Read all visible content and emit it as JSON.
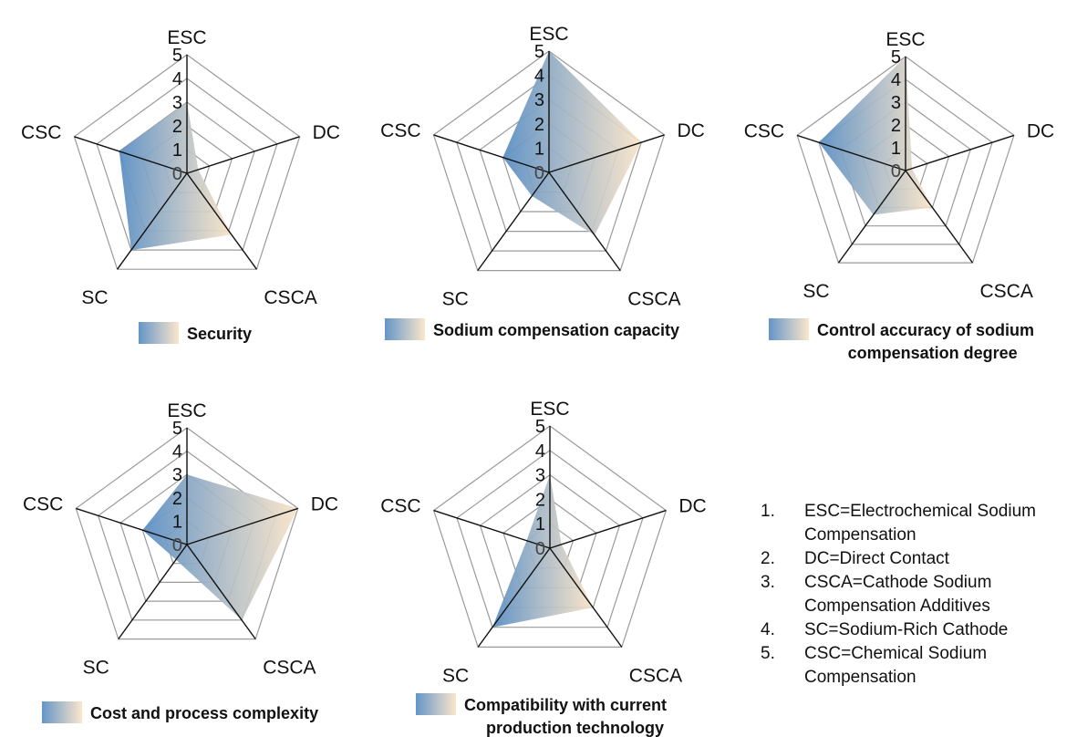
{
  "chart_data": [
    {
      "type": "radar",
      "axes": [
        "ESC",
        "DC",
        "CSCA",
        "SC",
        "CSC"
      ],
      "ticks": [
        "0",
        "1",
        "2",
        "3",
        "4",
        "5"
      ],
      "rlim": [
        0,
        5
      ],
      "series": [
        {
          "name": "Security",
          "values": [
            3,
            0.5,
            3.2,
            4,
            3
          ]
        }
      ],
      "legend_lines": [
        "Security"
      ]
    },
    {
      "type": "radar",
      "axes": [
        "ESC",
        "DC",
        "CSCA",
        "SC",
        "CSC"
      ],
      "ticks": [
        "0",
        "1",
        "2",
        "3",
        "4",
        "5"
      ],
      "rlim": [
        0,
        5
      ],
      "series": [
        {
          "name": "Sodium compensation capacity",
          "values": [
            5,
            4,
            3.2,
            1.2,
            2
          ]
        }
      ],
      "legend_lines": [
        "Sodium compensation capacity"
      ]
    },
    {
      "type": "radar",
      "axes": [
        "ESC",
        "DC",
        "CSCA",
        "SC",
        "CSC"
      ],
      "ticks": [
        "0",
        "1",
        "2",
        "3",
        "4",
        "5"
      ],
      "rlim": [
        0,
        5
      ],
      "series": [
        {
          "name": "Control accuracy of sodium compensation degree",
          "values": [
            5,
            0.3,
            2,
            2.4,
            4
          ]
        }
      ],
      "legend_lines": [
        "Control accuracy of sodium",
        "compensation degree"
      ]
    },
    {
      "type": "radar",
      "axes": [
        "ESC",
        "DC",
        "CSCA",
        "SC",
        "CSC"
      ],
      "ticks": [
        "0",
        "1",
        "2",
        "3",
        "4",
        "5"
      ],
      "rlim": [
        0,
        5
      ],
      "series": [
        {
          "name": "Cost and process complexity",
          "values": [
            3,
            5,
            4,
            0.8,
            2
          ]
        }
      ],
      "legend_lines": [
        "Cost and process complexity"
      ]
    },
    {
      "type": "radar",
      "axes": [
        "ESC",
        "DC",
        "CSCA",
        "SC",
        "CSC"
      ],
      "ticks": [
        "0",
        "1",
        "2",
        "3",
        "4",
        "5"
      ],
      "rlim": [
        0,
        5
      ],
      "series": [
        {
          "name": "Compatibility with current production technology",
          "values": [
            3,
            0.5,
            3,
            4,
            1
          ]
        }
      ],
      "legend_lines": [
        "Compatibility with current",
        "production technology"
      ]
    }
  ],
  "colors": {
    "fill_start": "#5b8fc4",
    "fill_end": "#f9e3c6",
    "grid": "#9a9a9a",
    "spoke": "#111111",
    "tick_text": "#444444"
  },
  "notes": [
    {
      "num": "1.",
      "text": "ESC=Electrochemical Sodium Compensation"
    },
    {
      "num": "2.",
      "text": "DC=Direct Contact"
    },
    {
      "num": "3.",
      "text": "CSCA=Cathode Sodium Compensation Additives"
    },
    {
      "num": "4.",
      "text": "SC=Sodium-Rich Cathode"
    },
    {
      "num": "5.",
      "text": "CSC=Chemical Sodium Compensation"
    }
  ]
}
